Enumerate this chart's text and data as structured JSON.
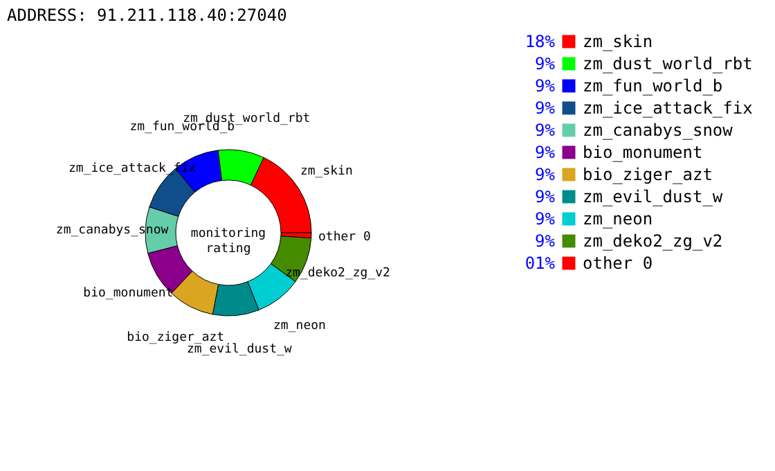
{
  "chart_data": {
    "type": "donut",
    "subtitle": "ADDRESS: 91.211.118.40:27040",
    "categories": [
      "zm_skin",
      "zm_dust_world_rbt",
      "zm_fun_world_b",
      "zm_ice_attack_fix",
      "zm_canabys_snow",
      "bio_monument",
      "bio_ziger_azt",
      "zm_evil_dust_w",
      "zm_neon",
      "zm_deko2_zg_v2",
      "other 0"
    ],
    "values": [
      18,
      9,
      9,
      9,
      9,
      9,
      9,
      9,
      9,
      9,
      1
    ],
    "value_labels": [
      "18%",
      "9%",
      "9%",
      "9%",
      "9%",
      "9%",
      "9%",
      "9%",
      "9%",
      "9%",
      "01%"
    ],
    "colors": [
      "#ff0000",
      "#00ff00",
      "#0000ff",
      "#104e8b",
      "#66cdaa",
      "#8b008b",
      "#daa520",
      "#008b8b",
      "#00ced1",
      "#458b00",
      "#ff0000"
    ],
    "annotations": [
      "monitoring rating"
    ],
    "legend": "right"
  }
}
